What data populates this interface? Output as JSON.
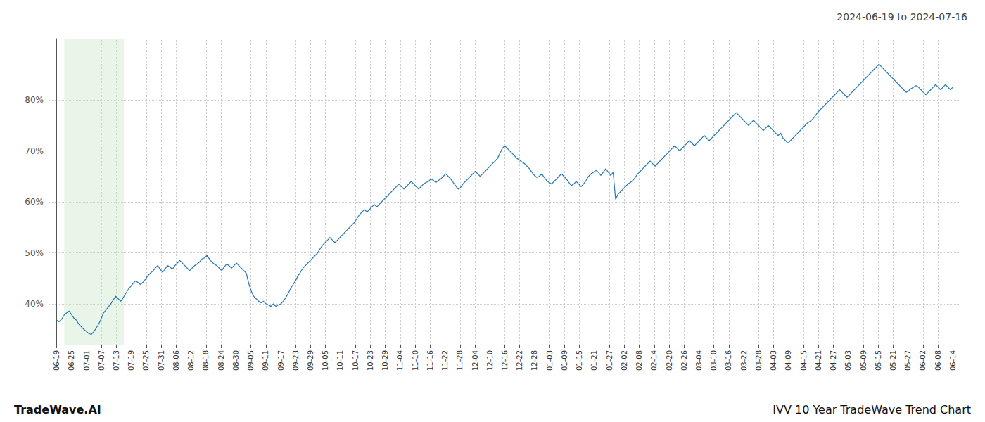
{
  "chart_data": {
    "type": "line",
    "title": "2024-06-19 to 2024-07-16",
    "annotations": [
      "TradeWave.AI",
      "IVV 10 Year TradeWave Trend Chart"
    ],
    "color": "#2778b5",
    "grid": true,
    "shade": {
      "from": "06-25",
      "to": "07-13",
      "color": "#c8e6c9"
    },
    "xlim": [
      -0.5,
      60.5
    ],
    "xticks": [
      {
        "value": 0,
        "label": "06-19"
      },
      {
        "value": 1,
        "label": "06-25"
      },
      {
        "value": 2,
        "label": "07-01"
      },
      {
        "value": 3,
        "label": "07-07"
      },
      {
        "value": 4,
        "label": "07-13"
      },
      {
        "value": 5,
        "label": "07-19"
      },
      {
        "value": 6,
        "label": "07-25"
      },
      {
        "value": 7,
        "label": "07-31"
      },
      {
        "value": 8,
        "label": "08-06"
      },
      {
        "value": 9,
        "label": "08-12"
      },
      {
        "value": 10,
        "label": "08-18"
      },
      {
        "value": 11,
        "label": "08-24"
      },
      {
        "value": 12,
        "label": "08-30"
      },
      {
        "value": 13,
        "label": "09-05"
      },
      {
        "value": 14,
        "label": "09-11"
      },
      {
        "value": 15,
        "label": "09-17"
      },
      {
        "value": 16,
        "label": "09-23"
      },
      {
        "value": 17,
        "label": "09-29"
      },
      {
        "value": 18,
        "label": "10-05"
      },
      {
        "value": 19,
        "label": "10-11"
      },
      {
        "value": 20,
        "label": "10-17"
      },
      {
        "value": 21,
        "label": "10-23"
      },
      {
        "value": 22,
        "label": "10-29"
      },
      {
        "value": 23,
        "label": "11-04"
      },
      {
        "value": 24,
        "label": "11-10"
      },
      {
        "value": 25,
        "label": "11-16"
      },
      {
        "value": 26,
        "label": "11-22"
      },
      {
        "value": 27,
        "label": "11-28"
      },
      {
        "value": 28,
        "label": "12-04"
      },
      {
        "value": 29,
        "label": "12-10"
      },
      {
        "value": 30,
        "label": "12-16"
      },
      {
        "value": 31,
        "label": "12-22"
      },
      {
        "value": 32,
        "label": "12-28"
      },
      {
        "value": 33,
        "label": "01-03"
      },
      {
        "value": 34,
        "label": "01-09"
      },
      {
        "value": 35,
        "label": "01-15"
      },
      {
        "value": 36,
        "label": "01-21"
      },
      {
        "value": 37,
        "label": "01-27"
      },
      {
        "value": 38,
        "label": "02-02"
      },
      {
        "value": 39,
        "label": "02-08"
      },
      {
        "value": 40,
        "label": "02-14"
      },
      {
        "value": 41,
        "label": "02-20"
      },
      {
        "value": 42,
        "label": "02-26"
      },
      {
        "value": 43,
        "label": "03-04"
      },
      {
        "value": 44,
        "label": "03-10"
      },
      {
        "value": 45,
        "label": "03-16"
      },
      {
        "value": 46,
        "label": "03-22"
      },
      {
        "value": 47,
        "label": "03-28"
      },
      {
        "value": 48,
        "label": "04-03"
      },
      {
        "value": 49,
        "label": "04-09"
      },
      {
        "value": 50,
        "label": "04-15"
      },
      {
        "value": 51,
        "label": "04-21"
      },
      {
        "value": 52,
        "label": "04-27"
      },
      {
        "value": 53,
        "label": "05-03"
      },
      {
        "value": 54,
        "label": "05-09"
      },
      {
        "value": 55,
        "label": "05-15"
      },
      {
        "value": 56,
        "label": "05-21"
      },
      {
        "value": 57,
        "label": "05-27"
      },
      {
        "value": 58,
        "label": "06-02"
      },
      {
        "value": 59,
        "label": "06-08"
      },
      {
        "value": 60,
        "label": "06-14"
      }
    ],
    "ylim": [
      32,
      92
    ],
    "yticks": [
      {
        "value": 40,
        "label": "40%"
      },
      {
        "value": 50,
        "label": "50%"
      },
      {
        "value": 60,
        "label": "60%"
      },
      {
        "value": 70,
        "label": "70%"
      },
      {
        "value": 80,
        "label": "80%"
      }
    ],
    "x": [
      0,
      0.1648,
      0.3297,
      0.4945,
      0.6593,
      0.8242,
      0.989,
      1.1538,
      1.3187,
      1.4835,
      1.6484,
      1.8132,
      1.978,
      2.1429,
      2.3077,
      2.4725,
      2.6374,
      2.8022,
      2.967,
      3.1319,
      3.2967,
      3.4615,
      3.6264,
      3.7912,
      3.956,
      4.1209,
      4.2857,
      4.4505,
      4.6154,
      4.7802,
      4.9451,
      5.1099,
      5.2747,
      5.4396,
      5.6044,
      5.7692,
      5.9341,
      6.0989,
      6.2637,
      6.4286,
      6.5934,
      6.7582,
      6.9231,
      7.0879,
      7.2527,
      7.4176,
      7.5824,
      7.7473,
      7.9121,
      8.0769,
      8.2418,
      8.4066,
      8.5714,
      8.7363,
      8.9011,
      9.0659,
      9.2308,
      9.3956,
      9.5604,
      9.7253,
      9.8901,
      10.0549,
      10.2198,
      10.3846,
      10.5495,
      10.7143,
      10.8791,
      11.044,
      11.2088,
      11.3736,
      11.5385,
      11.7033,
      11.8681,
      12.033,
      12.1978,
      12.3626,
      12.5275,
      12.6923,
      12.8571,
      13.022,
      13.1868,
      13.3516,
      13.5165,
      13.6813,
      13.8462,
      14.011,
      14.1758,
      14.3407,
      14.5055,
      14.6703,
      14.8352,
      15,
      15.1648,
      15.3297,
      15.4945,
      15.6593,
      15.8242,
      15.989,
      16.1538,
      16.3187,
      16.4835,
      16.6484,
      16.8132,
      16.978,
      17.1429,
      17.3077,
      17.4725,
      17.6374,
      17.8022,
      17.967,
      18.1319,
      18.2967,
      18.4615,
      18.6264,
      18.7912,
      18.956,
      19.1209,
      19.2857,
      19.4505,
      19.6154,
      19.7802,
      19.9451,
      20.1099,
      20.2747,
      20.4396,
      20.6044,
      20.7692,
      20.9341,
      21.0989,
      21.2637,
      21.4286,
      21.5934,
      21.7582,
      21.9231,
      22.0879,
      22.2527,
      22.4176,
      22.5824,
      22.7473,
      22.9121,
      23.0769,
      23.2418,
      23.4066,
      23.5714,
      23.7363,
      23.9011,
      24.0659,
      24.2308,
      24.3956,
      24.5604,
      24.7253,
      24.8901,
      25.0549,
      25.2198,
      25.3846,
      25.5495,
      25.7143,
      25.8791,
      26.044,
      26.2088,
      26.3736,
      26.5385,
      26.7033,
      26.8681,
      27.033,
      27.1978,
      27.3626,
      27.5275,
      27.6923,
      27.8571,
      28.022,
      28.1868,
      28.3516,
      28.5165,
      28.6813,
      28.8462,
      29.011,
      29.1758,
      29.3407,
      29.5055,
      29.6703,
      29.8352,
      30,
      30.1648,
      30.3297,
      30.4945,
      30.6593,
      30.8242,
      30.989,
      31.1538,
      31.3187,
      31.4835,
      31.6484,
      31.8132,
      31.978,
      32.1429,
      32.3077,
      32.4725,
      32.6374,
      32.8022,
      32.967,
      33.1319,
      33.2967,
      33.4615,
      33.6264,
      33.7912,
      33.956,
      34.1209,
      34.2857,
      34.4505,
      34.6154,
      34.7802,
      34.9451,
      35.1099,
      35.2747,
      35.4396,
      35.6044,
      35.7692,
      35.9341,
      36.0989,
      36.2637,
      36.4286,
      36.5934,
      36.7582,
      36.9231,
      37.0879,
      37.2527,
      37.4176,
      37.5824,
      37.7473,
      37.9121,
      38.0769,
      38.2418,
      38.4066,
      38.5714,
      38.7363,
      38.9011,
      39.0659,
      39.2308,
      39.3956,
      39.5604,
      39.7253,
      39.8901,
      40.0549,
      40.2198,
      40.3846,
      40.5495,
      40.7143,
      40.8791,
      41.044,
      41.2088,
      41.3736,
      41.5385,
      41.7033,
      41.8681,
      42.033,
      42.1978,
      42.3626,
      42.5275,
      42.6923,
      42.8571,
      43.022,
      43.1868,
      43.3516,
      43.5165,
      43.6813,
      43.8462,
      44.011,
      44.1758,
      44.3407,
      44.5055,
      44.6703,
      44.8352,
      45,
      45.1648,
      45.3297,
      45.4945,
      45.6593,
      45.8242,
      45.989,
      46.1538,
      46.3187,
      46.4835,
      46.6484,
      46.8132,
      46.978,
      47.1429,
      47.3077,
      47.4725,
      47.6374,
      47.8022,
      47.967,
      48.1319,
      48.2967,
      48.4615,
      48.6264,
      48.7912,
      48.956,
      49.1209,
      49.2857,
      49.4505,
      49.6154,
      49.7802,
      49.9451,
      50.1099,
      50.2747,
      50.4396,
      50.6044,
      50.7692,
      50.9341,
      51.0989,
      51.2637,
      51.4286,
      51.5934,
      51.7582,
      51.9231,
      52.0879,
      52.2527,
      52.4176,
      52.5824,
      52.7473,
      52.9121,
      53.0769,
      53.2418,
      53.4066,
      53.5714,
      53.7363,
      53.9011,
      54.0659,
      54.2308,
      54.3956,
      54.5604,
      54.7253,
      54.8901,
      55.0549,
      55.2198,
      55.3846,
      55.5495,
      55.7143,
      55.8791,
      56.044,
      56.2088,
      56.3736,
      56.5385,
      56.7033,
      56.8681,
      57.033,
      57.1978,
      57.3626,
      57.5275,
      57.6923,
      57.8571,
      58.022,
      58.1868,
      58.3516,
      58.5165,
      58.6813,
      58.8462,
      59.011,
      59.1758,
      59.3407,
      59.5055,
      59.6703,
      59.8352,
      60
    ],
    "values": [
      36.8,
      36.5,
      37.0,
      37.8,
      38.2,
      38.6,
      37.9,
      37.2,
      36.8,
      36.0,
      35.5,
      35.0,
      34.6,
      34.2,
      34.0,
      34.5,
      35.2,
      36.0,
      37.0,
      38.2,
      38.8,
      39.4,
      40.0,
      40.8,
      41.5,
      41.0,
      40.5,
      41.2,
      42.0,
      42.8,
      43.4,
      44.0,
      44.5,
      44.2,
      43.8,
      44.2,
      44.8,
      45.5,
      46.0,
      46.4,
      47.0,
      47.5,
      46.8,
      46.2,
      46.8,
      47.5,
      47.2,
      46.8,
      47.5,
      48.0,
      48.5,
      48.0,
      47.5,
      47.0,
      46.5,
      47.0,
      47.5,
      47.8,
      48.2,
      48.8,
      49.0,
      49.5,
      48.8,
      48.2,
      47.8,
      47.5,
      47.0,
      46.5,
      47.2,
      47.8,
      47.5,
      47.0,
      47.5,
      48.0,
      47.5,
      47.0,
      46.5,
      46.0,
      44.0,
      42.5,
      41.5,
      41.0,
      40.5,
      40.2,
      40.5,
      40.0,
      39.8,
      39.5,
      40.0,
      39.5,
      39.8,
      40.0,
      40.5,
      41.2,
      42.0,
      43.0,
      43.8,
      44.5,
      45.5,
      46.2,
      47.0,
      47.5,
      48.0,
      48.5,
      49.0,
      49.5,
      50.0,
      50.8,
      51.5,
      52.0,
      52.5,
      53.0,
      52.5,
      52.0,
      52.5,
      53.0,
      53.5,
      54.0,
      54.5,
      55.0,
      55.5,
      56.0,
      56.8,
      57.5,
      58.0,
      58.5,
      58.0,
      58.5,
      59.0,
      59.5,
      59.0,
      59.5,
      60.0,
      60.5,
      61.0,
      61.5,
      62.0,
      62.5,
      63.0,
      63.5,
      63.0,
      62.5,
      63.0,
      63.5,
      64.0,
      63.5,
      63.0,
      62.5,
      63.0,
      63.5,
      63.8,
      64.0,
      64.5,
      64.2,
      63.8,
      64.2,
      64.5,
      65.0,
      65.5,
      65.0,
      64.5,
      63.8,
      63.2,
      62.5,
      62.8,
      63.5,
      64.0,
      64.5,
      65.0,
      65.5,
      66.0,
      65.5,
      65.0,
      65.5,
      66.0,
      66.5,
      67.0,
      67.5,
      68.0,
      68.5,
      69.5,
      70.5,
      71.0,
      70.5,
      70.0,
      69.5,
      69.0,
      68.5,
      68.2,
      67.8,
      67.5,
      67.0,
      66.5,
      65.8,
      65.2,
      64.8,
      65.0,
      65.5,
      64.8,
      64.2,
      63.8,
      63.5,
      64.0,
      64.5,
      65.0,
      65.5,
      65.0,
      64.5,
      63.8,
      63.2,
      63.5,
      64.0,
      63.5,
      63.0,
      63.5,
      64.2,
      65.0,
      65.5,
      65.8,
      66.2,
      65.8,
      65.2,
      65.8,
      66.5,
      65.8,
      65.2,
      65.8,
      60.5,
      61.5,
      62.0,
      62.5,
      63.0,
      63.5,
      63.8,
      64.2,
      64.8,
      65.5,
      66.0,
      66.5,
      67.0,
      67.5,
      68.0,
      67.5,
      67.0,
      67.5,
      68.0,
      68.5,
      69.0,
      69.5,
      70.0,
      70.5,
      71.0,
      70.5,
      70.0,
      70.5,
      71.0,
      71.5,
      72.0,
      71.5,
      71.0,
      71.5,
      72.0,
      72.5,
      73.0,
      72.5,
      72.0,
      72.5,
      73.0,
      73.5,
      74.0,
      74.5,
      75.0,
      75.5,
      76.0,
      76.5,
      77.0,
      77.5,
      77.0,
      76.5,
      76.0,
      75.5,
      75.0,
      75.5,
      76.0,
      75.5,
      75.0,
      74.5,
      74.0,
      74.5,
      75.0,
      74.5,
      74.0,
      73.5,
      73.0,
      73.5,
      72.5,
      72.0,
      71.5,
      72.0,
      72.5,
      73.0,
      73.5,
      74.0,
      74.5,
      75.0,
      75.5,
      75.8,
      76.2,
      76.8,
      77.5,
      78.0,
      78.5,
      79.0,
      79.5,
      80.0,
      80.5,
      81.0,
      81.5,
      82.0,
      81.5,
      81.0,
      80.5,
      81.0,
      81.5,
      82.0,
      82.5,
      83.0,
      83.5,
      84.0,
      84.5,
      85.0,
      85.5,
      86.0,
      86.5,
      87.0,
      86.5,
      86.0,
      85.5,
      85.0,
      84.5,
      84.0,
      83.5,
      83.0,
      82.5,
      82.0,
      81.5,
      81.8,
      82.2,
      82.5,
      82.8,
      82.5,
      82.0,
      81.5,
      81.0,
      81.5,
      82.0,
      82.5,
      83.0,
      82.5,
      82.0,
      82.5,
      83.0,
      82.5,
      82.0,
      82.5
    ]
  }
}
